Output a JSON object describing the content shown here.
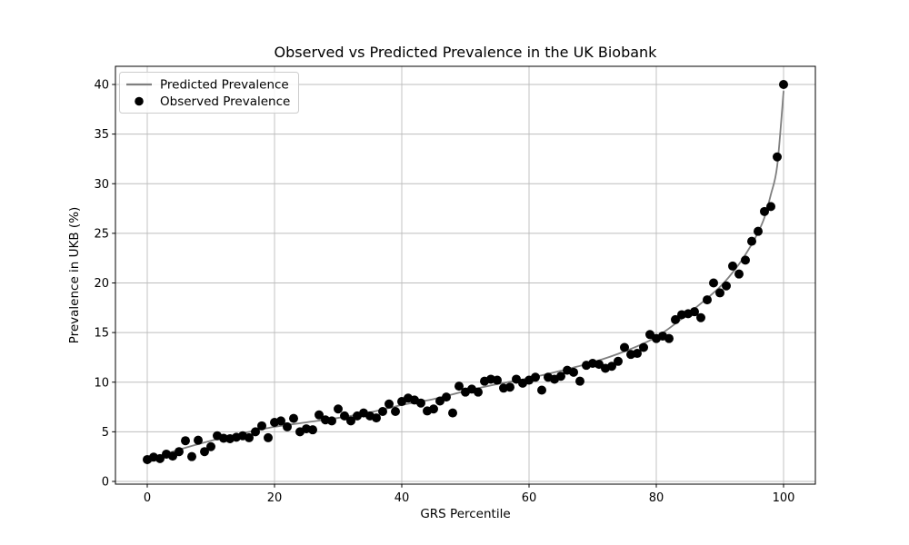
{
  "figure": {
    "background": "#ffffff",
    "spine_color": "#000000",
    "grid_color": "#bdbdbd"
  },
  "chart_data": {
    "type": "line",
    "title": "Observed vs Predicted Prevalence in the UK Biobank",
    "xlabel": "GRS Percentile",
    "ylabel": "Prevalence in UKB (%)",
    "xlim": [
      -5,
      105
    ],
    "ylim": [
      -0.275,
      41.83
    ],
    "xticks": [
      0,
      20,
      40,
      60,
      80,
      100
    ],
    "yticks": [
      0,
      5,
      10,
      15,
      20,
      25,
      30,
      35,
      40
    ],
    "grid": true,
    "legend_position": "upper left",
    "series": [
      {
        "name": "Predicted Prevalence",
        "type": "line",
        "color": "#7f7f7f",
        "x": [
          0,
          2,
          5,
          10,
          15,
          20,
          25,
          30,
          35,
          40,
          45,
          50,
          55,
          60,
          65,
          70,
          75,
          80,
          85,
          90,
          93,
          95,
          96,
          97,
          98,
          99,
          100
        ],
        "y": [
          1.8,
          2.5,
          3.2,
          4.1,
          4.85,
          5.5,
          5.95,
          6.4,
          6.95,
          7.7,
          8.3,
          9.1,
          9.8,
          10.4,
          11.15,
          12.0,
          13.1,
          14.55,
          16.9,
          19.6,
          21.9,
          23.9,
          25.1,
          26.6,
          28.9,
          31.8,
          39.3
        ]
      },
      {
        "name": "Observed Prevalence",
        "type": "scatter",
        "color": "#000000",
        "x": [
          0,
          1,
          2,
          3,
          4,
          5,
          6,
          7,
          8,
          9,
          10,
          11,
          12,
          13,
          14,
          15,
          16,
          17,
          18,
          19,
          20,
          21,
          22,
          23,
          24,
          25,
          26,
          27,
          28,
          29,
          30,
          31,
          32,
          33,
          34,
          35,
          36,
          37,
          38,
          39,
          40,
          41,
          42,
          43,
          44,
          45,
          46,
          47,
          48,
          49,
          50,
          51,
          52,
          53,
          54,
          55,
          56,
          57,
          58,
          59,
          60,
          61,
          62,
          63,
          64,
          65,
          66,
          67,
          68,
          69,
          70,
          71,
          72,
          73,
          74,
          75,
          76,
          77,
          78,
          79,
          80,
          81,
          82,
          83,
          84,
          85,
          86,
          87,
          88,
          89,
          90,
          91,
          92,
          93,
          94,
          95,
          96,
          97,
          98,
          99,
          100
        ],
        "y": [
          2.2,
          2.45,
          2.3,
          2.75,
          2.55,
          3.0,
          4.1,
          2.5,
          4.15,
          3.0,
          3.5,
          4.6,
          4.35,
          4.3,
          4.45,
          4.6,
          4.4,
          5.0,
          5.6,
          4.4,
          5.95,
          6.1,
          5.5,
          6.35,
          5.0,
          5.3,
          5.2,
          6.7,
          6.2,
          6.1,
          7.3,
          6.6,
          6.1,
          6.6,
          6.9,
          6.6,
          6.4,
          7.05,
          7.8,
          7.05,
          8.05,
          8.4,
          8.2,
          7.9,
          7.1,
          7.3,
          8.1,
          8.5,
          6.9,
          9.6,
          9.0,
          9.3,
          9.0,
          10.1,
          10.3,
          10.2,
          9.4,
          9.5,
          10.3,
          9.9,
          10.2,
          10.5,
          9.2,
          10.5,
          10.3,
          10.6,
          11.2,
          11.0,
          10.1,
          11.7,
          11.9,
          11.8,
          11.4,
          11.6,
          12.1,
          13.5,
          12.8,
          12.9,
          13.5,
          14.8,
          14.4,
          14.65,
          14.4,
          16.3,
          16.8,
          16.9,
          17.1,
          16.5,
          18.3,
          20.0,
          19.0,
          19.7,
          21.7,
          20.9,
          22.3,
          24.2,
          25.2,
          27.2,
          27.7,
          32.7,
          40.0
        ]
      }
    ]
  },
  "legend": {
    "entries": [
      {
        "label": "Predicted Prevalence",
        "marker": "line"
      },
      {
        "label": "Observed Prevalence",
        "marker": "dot"
      }
    ]
  }
}
